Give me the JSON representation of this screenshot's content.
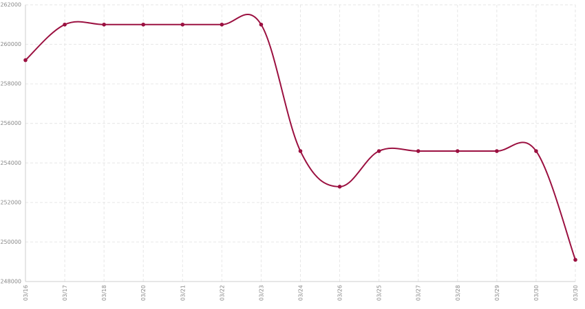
{
  "chart_data": {
    "type": "line",
    "categories": [
      "03/16",
      "03/17",
      "03/18",
      "03/20",
      "03/21",
      "03/22",
      "03/23",
      "03/24",
      "03/26",
      "03/25",
      "03/27",
      "03/28",
      "03/29",
      "03/30",
      "03/30"
    ],
    "values": [
      259200,
      261000,
      261000,
      261000,
      261000,
      261000,
      261000,
      254600,
      252800,
      254600,
      254600,
      254600,
      254600,
      254600,
      249100
    ],
    "color": "#9b1040",
    "ylim": [
      248000,
      262000
    ],
    "yticks": [
      248000,
      250000,
      252000,
      254000,
      256000,
      258000,
      260000,
      262000
    ],
    "grid": true
  }
}
